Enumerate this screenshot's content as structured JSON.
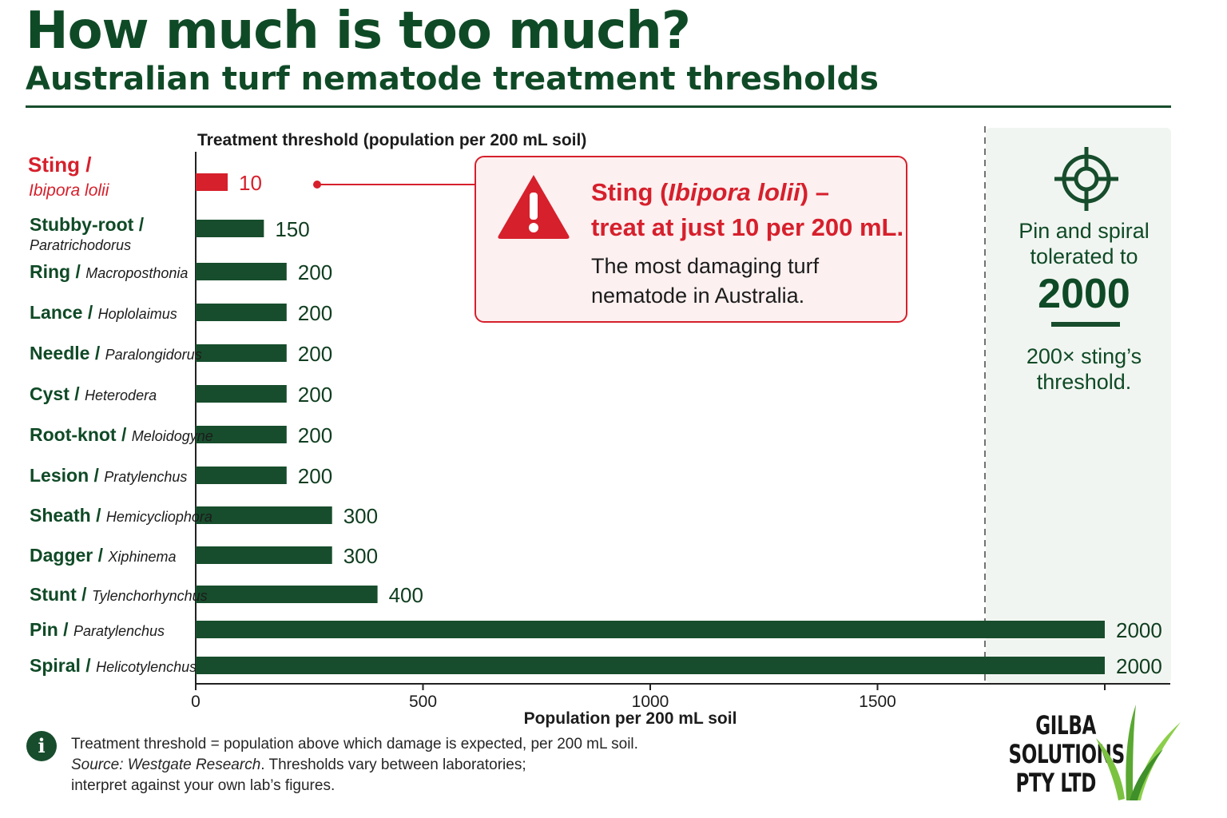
{
  "header": {
    "title": "How much is too much?",
    "subtitle": "Australian turf nematode treatment thresholds"
  },
  "chart_data": {
    "type": "bar",
    "orientation": "horizontal",
    "title": "Treatment threshold (population per 200 mL soil)",
    "xlabel": "Population per 200 mL soil",
    "xlim": [
      0,
      2000
    ],
    "xticks": [
      0,
      500,
      1000,
      1500
    ],
    "grid": false,
    "categories": [
      {
        "common": "Sting",
        "genus": "Ibipora lolii",
        "value": 10,
        "highlight": true
      },
      {
        "common": "Stubby-root",
        "genus": "Paratrichodorus",
        "value": 150
      },
      {
        "common": "Ring",
        "genus": "Macroposthonia",
        "value": 200
      },
      {
        "common": "Lance",
        "genus": "Hoplolaimus",
        "value": 200
      },
      {
        "common": "Needle",
        "genus": "Paralongidorus",
        "value": 200
      },
      {
        "common": "Cyst",
        "genus": "Heterodera",
        "value": 200
      },
      {
        "common": "Root-knot",
        "genus": "Meloidogyne",
        "value": 200
      },
      {
        "common": "Lesion",
        "genus": "Pratylenchus",
        "value": 200
      },
      {
        "common": "Sheath",
        "genus": "Hemicycliophora",
        "value": 300
      },
      {
        "common": "Dagger",
        "genus": "Xiphinema",
        "value": 300
      },
      {
        "common": "Stunt",
        "genus": "Tylenchorhynchus",
        "value": 400
      },
      {
        "common": "Pin",
        "genus": "Paratylenchus",
        "value": 2000
      },
      {
        "common": "Spiral",
        "genus": "Helicotylenchus",
        "value": 2000
      }
    ],
    "colors": {
      "bar": "#174d2c",
      "highlight": "#d6202c"
    }
  },
  "callout": {
    "title_prefix": "Sting (",
    "title_species": "Ibipora lolii",
    "title_suffix": ") –",
    "title_line2": "treat at just 10 per 200 mL.",
    "body": "The most damaging turf nematode in Australia."
  },
  "panel": {
    "line1": "Pin and spiral",
    "line2": "tolerated to",
    "number": "2000",
    "line3": "200× sting’s",
    "line4": "threshold."
  },
  "footnote": {
    "line1": "Treatment threshold = population above which damage is expected, per 200 mL soil.",
    "source_label": "Source: Westgate Research",
    "line2_rest": ". Thresholds vary between laboratories;",
    "line3": "interpret against your own lab’s figures.",
    "info_glyph": "i"
  },
  "logo": {
    "line1": "GILBA",
    "line2": "SOLUTIONS",
    "line3": "PTY LTD"
  }
}
